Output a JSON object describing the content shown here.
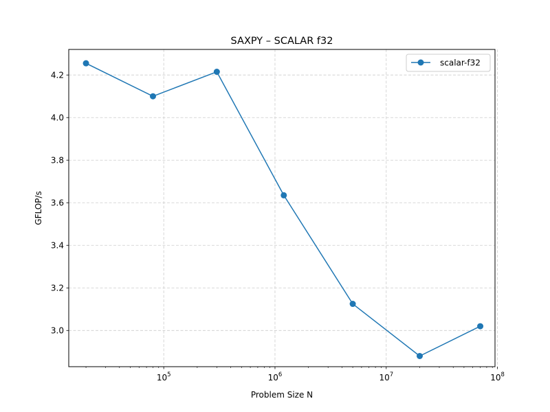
{
  "chart_data": {
    "type": "line",
    "title": "SAXPY – SCALAR f32",
    "xlabel": "Problem Size N",
    "ylabel": "GFLOP/s",
    "x_scale": "log",
    "xlim": [
      14000,
      95000000
    ],
    "ylim": [
      2.83,
      4.32
    ],
    "x_ticks": [
      {
        "value": 100000,
        "base": "10",
        "exp": "5"
      },
      {
        "value": 1000000,
        "base": "10",
        "exp": "6"
      },
      {
        "value": 10000000,
        "base": "10",
        "exp": "7"
      },
      {
        "value": 100000000,
        "base": "10",
        "exp": "8"
      }
    ],
    "y_ticks": [
      {
        "value": 3.0,
        "label": "3.0"
      },
      {
        "value": 3.2,
        "label": "3.2"
      },
      {
        "value": 3.4,
        "label": "3.4"
      },
      {
        "value": 3.6,
        "label": "3.6"
      },
      {
        "value": 3.8,
        "label": "3.8"
      },
      {
        "value": 4.0,
        "label": "4.0"
      },
      {
        "value": 4.2,
        "label": "4.2"
      }
    ],
    "grid": true,
    "grid_style": "dashed",
    "legend_position": "top-right",
    "series": [
      {
        "name": "scalar-f32",
        "color": "#1f77b4",
        "marker": "circle",
        "x": [
          20000,
          80000,
          300000,
          1200000,
          5000000,
          20000000,
          70000000
        ],
        "y": [
          4.255,
          4.1,
          4.215,
          3.635,
          3.125,
          2.88,
          3.02
        ]
      }
    ]
  }
}
